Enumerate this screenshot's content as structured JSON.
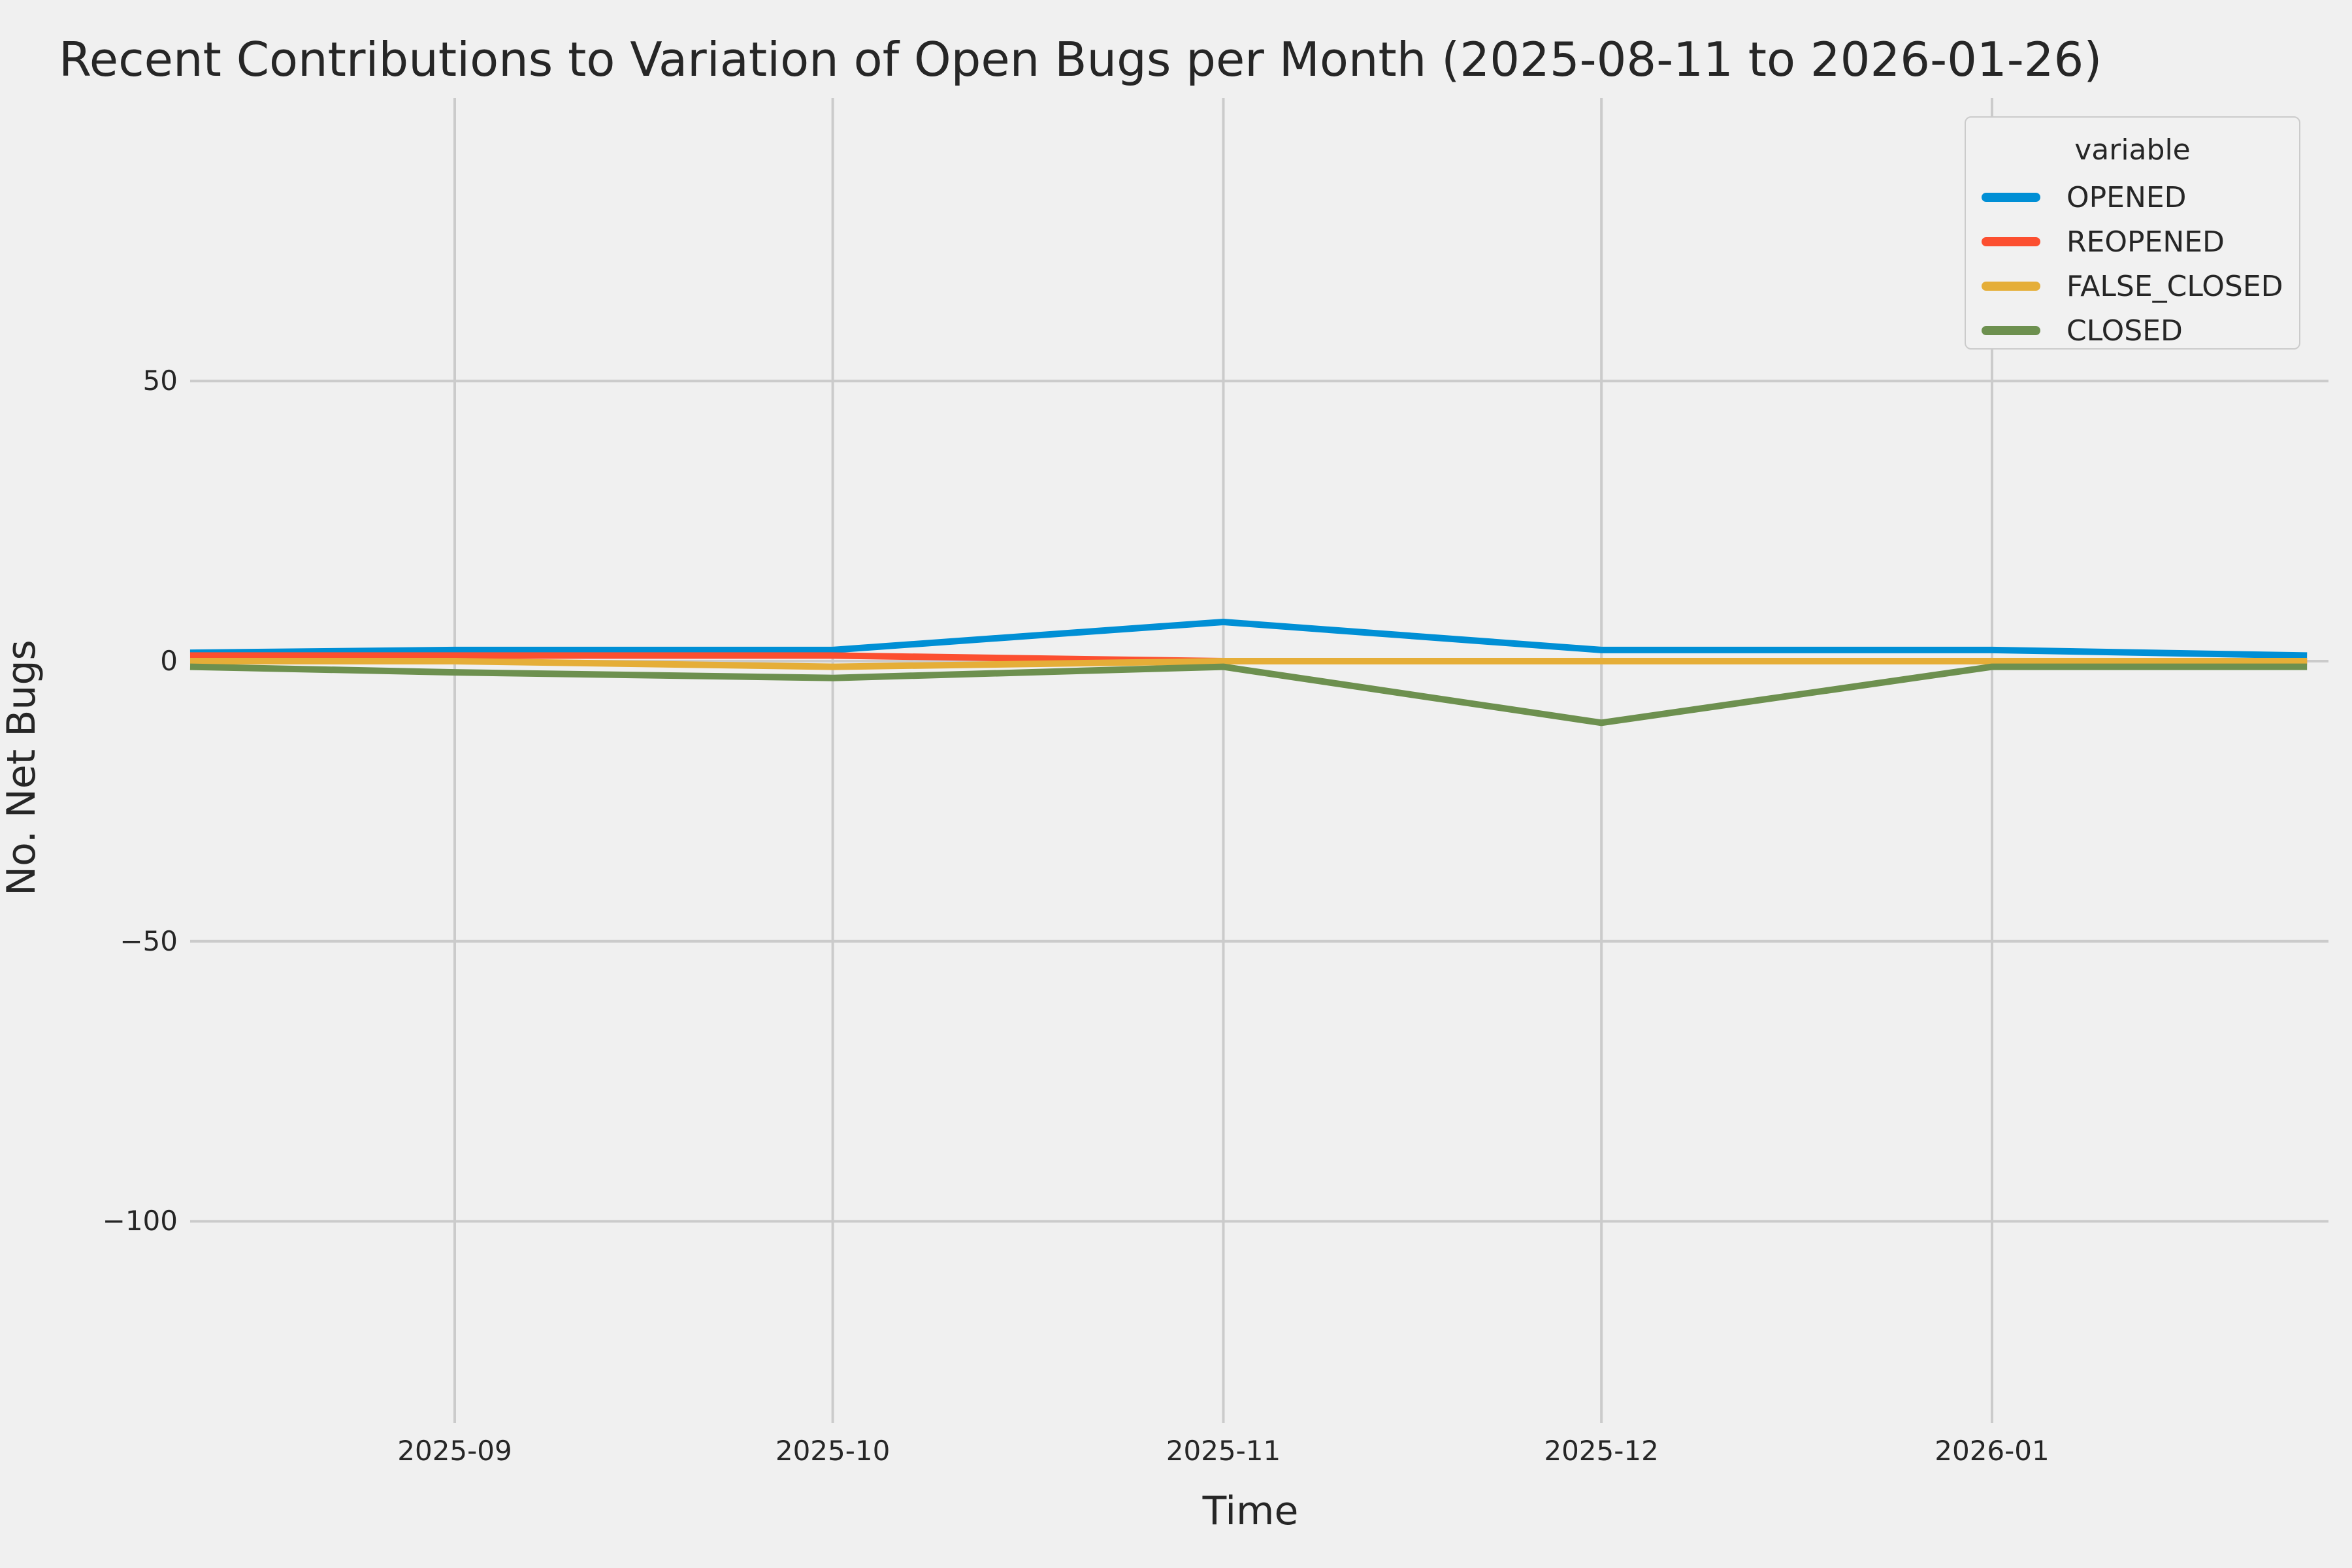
{
  "title": "Recent Contributions to Variation of Open Bugs per Month (2025-08-11 to 2026-01-26)",
  "colors": {
    "background": "#f0f0f0",
    "grid": "#cbcbcb",
    "text": "#262626",
    "opened": "#008fd5",
    "reopened": "#fc4f30",
    "false_closed": "#e5ae38",
    "closed": "#6d904f"
  },
  "chart_data": {
    "type": "line",
    "title": "Recent Contributions to Variation of Open Bugs per Month (2025-08-11 to 2026-01-26)",
    "xlabel": "Time",
    "ylabel": "No. Net Bugs",
    "legend_title": "variable",
    "legend_position": "upper right",
    "grid": true,
    "x": [
      "2025-08-11",
      "2025-09-01",
      "2025-10-01",
      "2025-11-01",
      "2025-12-01",
      "2026-01-01",
      "2026-01-26"
    ],
    "series": [
      {
        "name": "OPENED",
        "color": "#008fd5",
        "values": [
          1.5,
          2,
          2,
          7,
          2,
          2,
          1
        ]
      },
      {
        "name": "REOPENED",
        "color": "#fc4f30",
        "values": [
          1,
          1,
          1,
          0,
          0,
          0,
          0
        ]
      },
      {
        "name": "FALSE_CLOSED",
        "color": "#e5ae38",
        "values": [
          0,
          0,
          -1,
          0,
          0,
          0,
          0
        ]
      },
      {
        "name": "CLOSED",
        "color": "#6d904f",
        "values": [
          -1,
          -2,
          -3,
          -1,
          -11,
          -1,
          -1
        ]
      }
    ],
    "x_ticks": [
      {
        "label": "2025-09",
        "date": "2025-09-01"
      },
      {
        "label": "2025-10",
        "date": "2025-10-01"
      },
      {
        "label": "2025-11",
        "date": "2025-11-01"
      },
      {
        "label": "2025-12",
        "date": "2025-12-01"
      },
      {
        "label": "2026-01",
        "date": "2026-01-01"
      }
    ],
    "y_ticks": [
      {
        "label": "50",
        "value": 50
      },
      {
        "label": "0",
        "value": 0
      },
      {
        "label": "−50",
        "value": -50
      },
      {
        "label": "−100",
        "value": -100
      }
    ]
  }
}
